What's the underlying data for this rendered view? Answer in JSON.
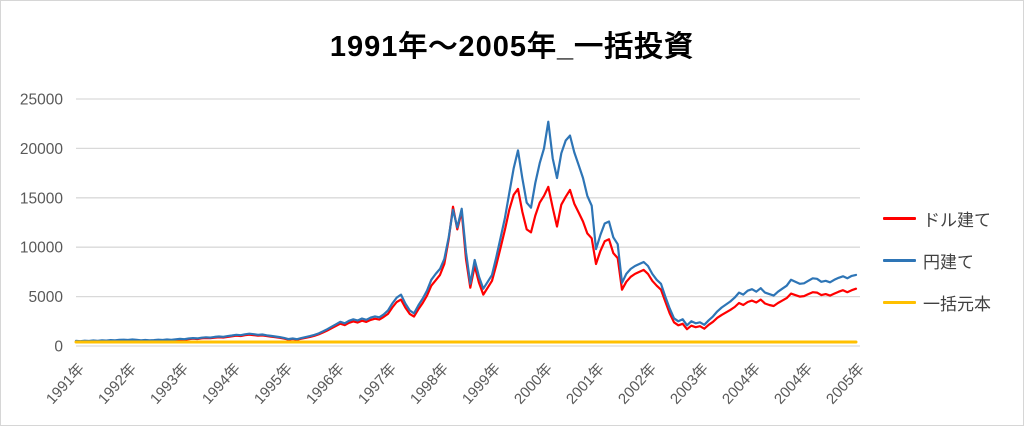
{
  "title": "1991年〜2005年_一括投資",
  "colors": {
    "dollar_series": "#ff0000",
    "yen_series": "#2e75b6",
    "principal_series": "#ffc000",
    "gridline": "#d9d9d9",
    "axis_text": "#595959"
  },
  "legend": {
    "items": [
      {
        "label": "ドル建て",
        "color": "#ff0000"
      },
      {
        "label": "円建て",
        "color": "#2e75b6"
      },
      {
        "label": "一括元本",
        "color": "#ffc000"
      }
    ]
  },
  "chart_data": {
    "type": "line",
    "title": "1991年〜2005年_一括投資",
    "xlabel": "",
    "ylabel": "",
    "ylim": [
      0,
      25000
    ],
    "y_ticks": [
      0,
      5000,
      10000,
      15000,
      20000,
      25000
    ],
    "grid": "horizontal",
    "legend_position": "right",
    "x_labels": [
      "1991年",
      "1992年",
      "1993年",
      "1994年",
      "1995年",
      "1996年",
      "1997年",
      "1998年",
      "1999年",
      "2000年",
      "2001年",
      "2002年",
      "2003年",
      "2004年",
      "2004年",
      "2005年"
    ],
    "series": [
      {
        "name": "ドル建て",
        "color": "#ff0000",
        "values": [
          480,
          455,
          500,
          470,
          515,
          490,
          535,
          505,
          555,
          530,
          570,
          590,
          560,
          610,
          575,
          535,
          565,
          525,
          555,
          590,
          565,
          610,
          580,
          625,
          660,
          635,
          700,
          735,
          710,
          775,
          810,
          785,
          850,
          885,
          860,
          925,
          980,
          1045,
          1010,
          1090,
          1150,
          1100,
          1045,
          1075,
          1000,
          945,
          890,
          835,
          760,
          650,
          705,
          640,
          740,
          830,
          925,
          1035,
          1185,
          1370,
          1570,
          1800,
          2030,
          2260,
          2120,
          2350,
          2490,
          2380,
          2560,
          2440,
          2640,
          2760,
          2670,
          2950,
          3250,
          3900,
          4450,
          4700,
          3900,
          3250,
          2980,
          3700,
          4350,
          5100,
          6100,
          6650,
          7200,
          8300,
          10800,
          14100,
          11800,
          13600,
          8800,
          5900,
          8100,
          6400,
          5200,
          5900,
          6600,
          8200,
          10000,
          11800,
          13800,
          15300,
          15900,
          13600,
          11800,
          11500,
          13200,
          14500,
          15200,
          16100,
          14000,
          12100,
          14300,
          15100,
          15800,
          14400,
          13500,
          12600,
          11400,
          10900,
          8300,
          9600,
          10600,
          10800,
          9400,
          8900,
          5700,
          6500,
          7000,
          7300,
          7500,
          7700,
          7300,
          6600,
          6100,
          5700,
          4500,
          3300,
          2400,
          2100,
          2250,
          1700,
          2050,
          1900,
          2000,
          1750,
          2150,
          2450,
          2850,
          3150,
          3400,
          3650,
          3950,
          4350,
          4150,
          4450,
          4600,
          4400,
          4700,
          4300,
          4150,
          4050,
          4350,
          4600,
          4850,
          5300,
          5150,
          5000,
          5050,
          5250,
          5450,
          5400,
          5150,
          5250,
          5100,
          5300,
          5500,
          5650,
          5450,
          5650,
          5800
        ]
      },
      {
        "name": "円建て",
        "color": "#2e75b6",
        "values": [
          520,
          490,
          540,
          510,
          560,
          530,
          580,
          550,
          600,
          570,
          620,
          640,
          610,
          660,
          620,
          580,
          610,
          570,
          600,
          640,
          610,
          660,
          630,
          680,
          720,
          690,
          760,
          800,
          770,
          840,
          880,
          850,
          920,
          960,
          930,
          1000,
          1060,
          1130,
          1090,
          1180,
          1240,
          1190,
          1130,
          1160,
          1080,
          1020,
          960,
          900,
          820,
          700,
          760,
          690,
          800,
          900,
          1000,
          1120,
          1280,
          1480,
          1700,
          1950,
          2200,
          2450,
          2300,
          2550,
          2700,
          2580,
          2780,
          2650,
          2870,
          3000,
          2900,
          3200,
          3600,
          4300,
          4900,
          5200,
          4300,
          3600,
          3300,
          4100,
          4800,
          5600,
          6700,
          7300,
          7800,
          8800,
          11000,
          13800,
          12000,
          13900,
          9500,
          6300,
          8700,
          7000,
          5800,
          6500,
          7200,
          9000,
          11000,
          13000,
          15500,
          18000,
          19800,
          17000,
          14500,
          14000,
          16500,
          18500,
          20000,
          22700,
          19000,
          17000,
          19500,
          20800,
          21300,
          19600,
          18300,
          17000,
          15200,
          14200,
          9800,
          11200,
          12400,
          12600,
          11000,
          10300,
          6400,
          7300,
          7800,
          8100,
          8300,
          8500,
          8100,
          7300,
          6700,
          6300,
          5000,
          3800,
          2800,
          2500,
          2700,
          2100,
          2500,
          2300,
          2400,
          2150,
          2600,
          3000,
          3500,
          3900,
          4200,
          4500,
          4900,
          5400,
          5200,
          5600,
          5750,
          5500,
          5850,
          5400,
          5250,
          5100,
          5500,
          5800,
          6100,
          6700,
          6500,
          6300,
          6350,
          6600,
          6850,
          6800,
          6500,
          6600,
          6450,
          6700,
          6900,
          7050,
          6850,
          7100,
          7200
        ]
      },
      {
        "name": "一括元本",
        "color": "#ffc000",
        "values": [
          400,
          400
        ]
      }
    ]
  }
}
